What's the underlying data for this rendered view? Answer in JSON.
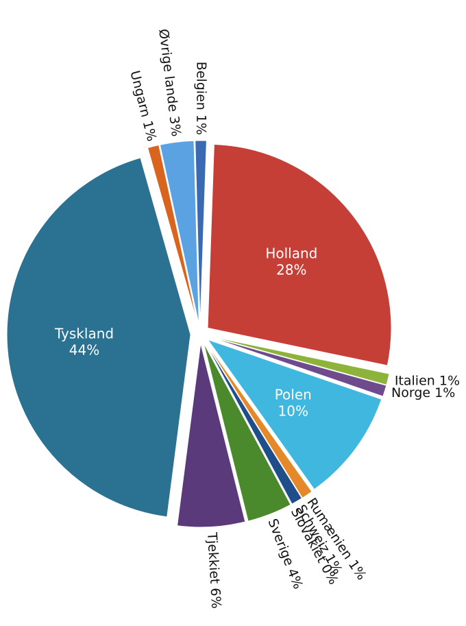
{
  "chart_data": {
    "type": "pie",
    "categories": [
      "Holland",
      "Italien",
      "Norge",
      "Polen",
      "Rumænien",
      "Schweiz",
      "Slovakiet",
      "Sverige",
      "Tjekkiet",
      "Tyskland",
      "Ungarn",
      "Øvrige lande",
      "Belgien"
    ],
    "values": [
      28,
      1,
      1,
      10,
      1,
      1,
      0,
      4,
      6,
      44,
      1,
      3,
      1
    ],
    "value_labels": [
      "28%",
      "1%",
      "1%",
      "10%",
      "1%",
      "1%",
      "0%",
      "4%",
      "6%",
      "44%",
      "1%",
      "3%",
      "1%"
    ],
    "colors": [
      "#c63f37",
      "#8db33a",
      "#6d4b8c",
      "#3fb7df",
      "#e5882a",
      "#1f4e8a",
      "#7a1f1f",
      "#4a8a2c",
      "#5b3a7c",
      "#2a7192",
      "#d9641e",
      "#5aa2e2",
      "#3a6ab2"
    ]
  }
}
